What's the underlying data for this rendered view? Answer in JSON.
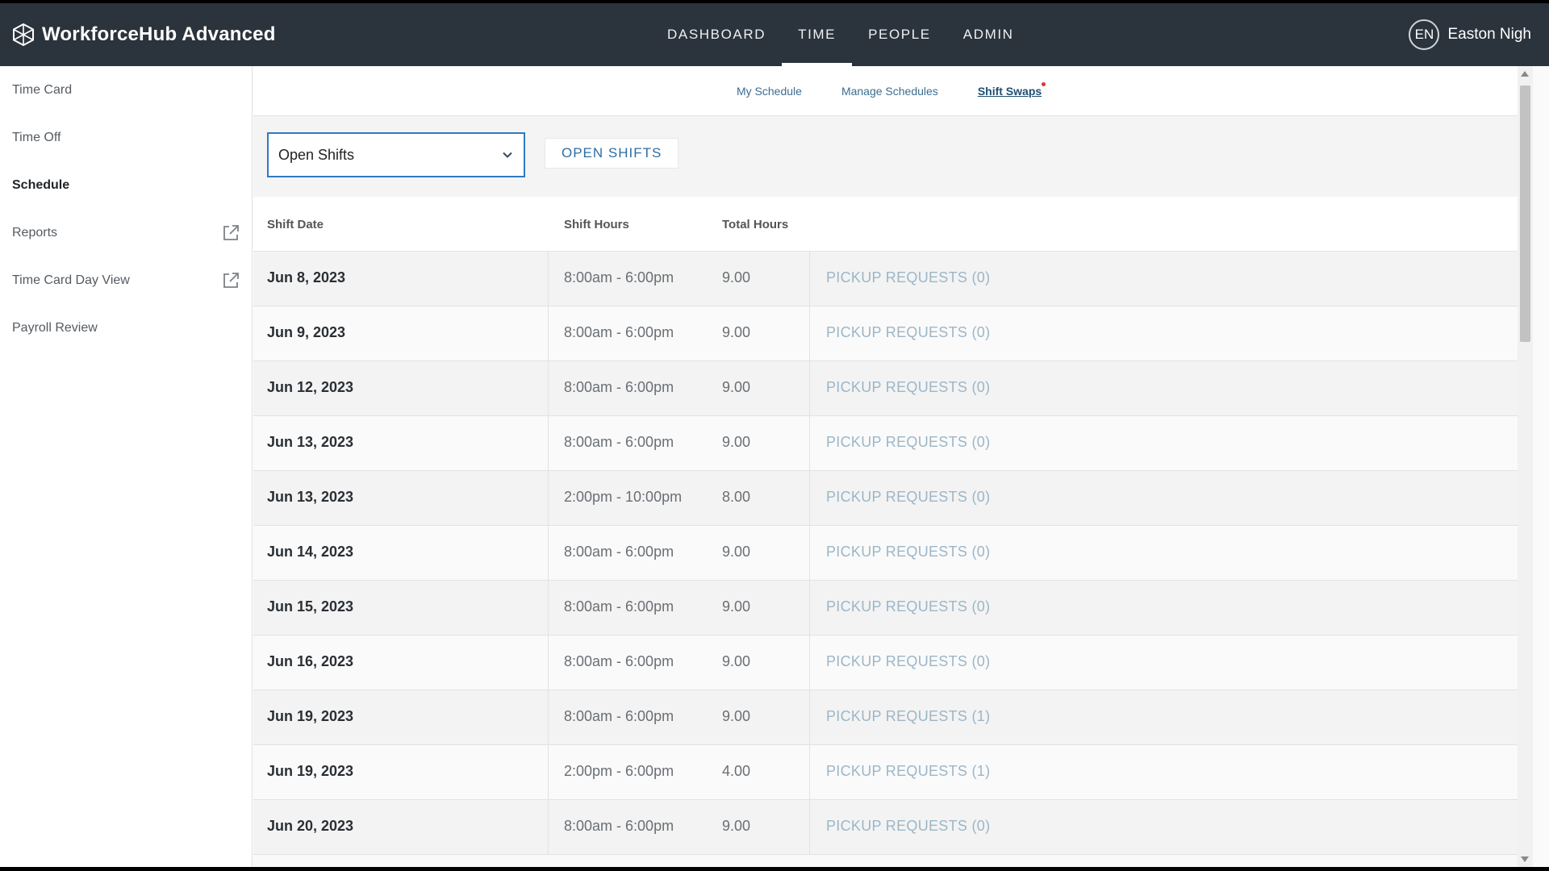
{
  "app": {
    "title": "WorkforceHub Advanced"
  },
  "nav": {
    "tabs": [
      {
        "label": "DASHBOARD"
      },
      {
        "label": "TIME"
      },
      {
        "label": "PEOPLE"
      },
      {
        "label": "ADMIN"
      }
    ],
    "active": "TIME"
  },
  "user": {
    "initials": "EN",
    "name": "Easton Nigh"
  },
  "sidebar": {
    "items": [
      {
        "label": "Time Card"
      },
      {
        "label": "Time Off"
      },
      {
        "label": "Schedule"
      },
      {
        "label": "Reports",
        "icon": "external-link-icon"
      },
      {
        "label": "Time Card Day View",
        "icon": "external-link-icon"
      },
      {
        "label": "Payroll Review"
      }
    ],
    "active": "Schedule"
  },
  "subnav": {
    "links": [
      {
        "label": "My Schedule"
      },
      {
        "label": "Manage Schedules"
      },
      {
        "label": "Shift Swaps"
      }
    ],
    "active": "Shift Swaps"
  },
  "toolbar": {
    "select_value": "Open Shifts",
    "button_label": "OPEN SHIFTS"
  },
  "table": {
    "headers": {
      "date": "Shift Date",
      "hours": "Shift Hours",
      "total": "Total Hours"
    },
    "rows": [
      {
        "date": "Jun 8, 2023",
        "hours": "8:00am - 6:00pm",
        "total": "9.00",
        "pickup": "PICKUP REQUESTS (0)"
      },
      {
        "date": "Jun 9, 2023",
        "hours": "8:00am - 6:00pm",
        "total": "9.00",
        "pickup": "PICKUP REQUESTS (0)"
      },
      {
        "date": "Jun 12, 2023",
        "hours": "8:00am - 6:00pm",
        "total": "9.00",
        "pickup": "PICKUP REQUESTS (0)"
      },
      {
        "date": "Jun 13, 2023",
        "hours": "8:00am - 6:00pm",
        "total": "9.00",
        "pickup": "PICKUP REQUESTS (0)"
      },
      {
        "date": "Jun 13, 2023",
        "hours": "2:00pm - 10:00pm",
        "total": "8.00",
        "pickup": "PICKUP REQUESTS (0)"
      },
      {
        "date": "Jun 14, 2023",
        "hours": "8:00am - 6:00pm",
        "total": "9.00",
        "pickup": "PICKUP REQUESTS (0)"
      },
      {
        "date": "Jun 15, 2023",
        "hours": "8:00am - 6:00pm",
        "total": "9.00",
        "pickup": "PICKUP REQUESTS (0)"
      },
      {
        "date": "Jun 16, 2023",
        "hours": "8:00am - 6:00pm",
        "total": "9.00",
        "pickup": "PICKUP REQUESTS (0)"
      },
      {
        "date": "Jun 19, 2023",
        "hours": "8:00am - 6:00pm",
        "total": "9.00",
        "pickup": "PICKUP REQUESTS (1)"
      },
      {
        "date": "Jun 19, 2023",
        "hours": "2:00pm - 6:00pm",
        "total": "4.00",
        "pickup": "PICKUP REQUESTS (1)"
      },
      {
        "date": "Jun 20, 2023",
        "hours": "8:00am - 6:00pm",
        "total": "9.00",
        "pickup": "PICKUP REQUESTS (0)"
      }
    ]
  },
  "colors": {
    "topbar": "#2b333c",
    "accent": "#2f79c2",
    "link": "#3d6d8f",
    "pickup": "#9cb6c8",
    "notification": "#d93636"
  }
}
